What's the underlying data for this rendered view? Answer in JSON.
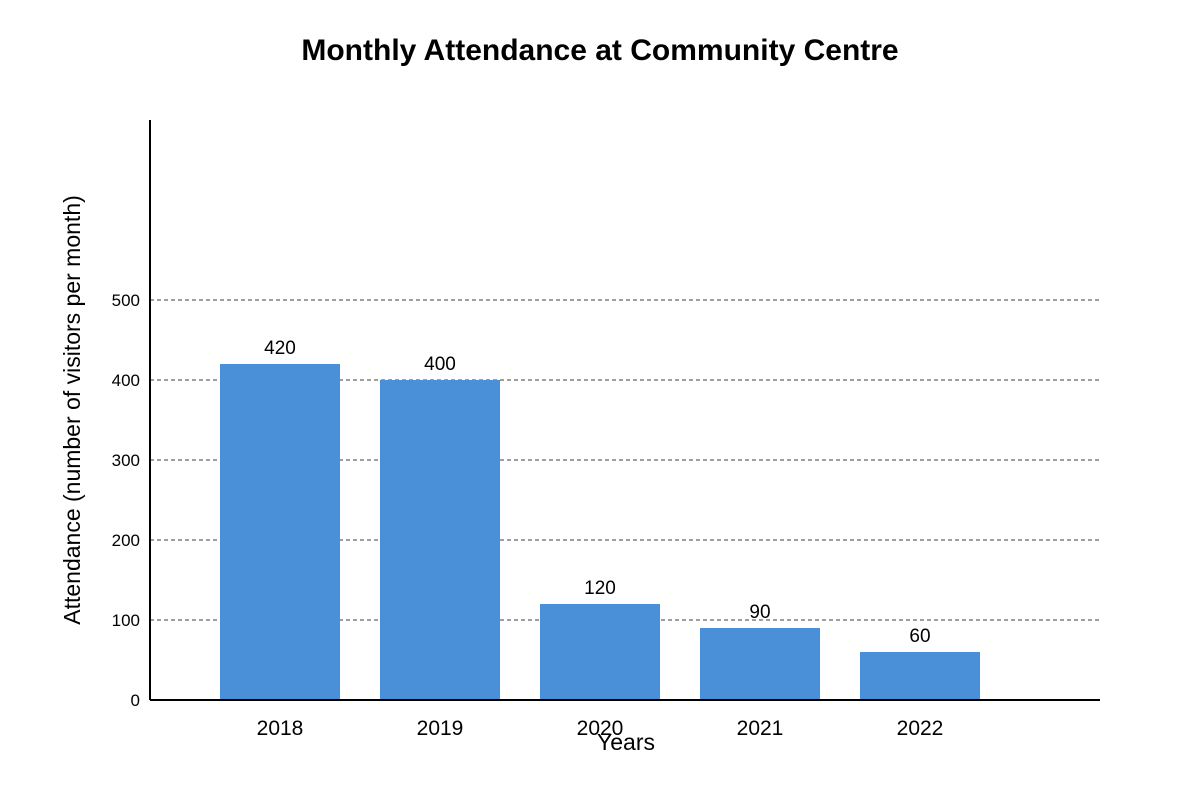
{
  "chart_data": {
    "type": "bar",
    "title": "Monthly Attendance at Community Centre",
    "xlabel": "Years",
    "ylabel": "Attendance (number of visitors per month)",
    "categories": [
      "2018",
      "2019",
      "2020",
      "2021",
      "2022"
    ],
    "values": [
      420,
      400,
      120,
      90,
      60
    ],
    "data_labels": [
      "420",
      "400",
      "120",
      "90",
      "60"
    ],
    "y_ticks": [
      0,
      100,
      200,
      300,
      400,
      500
    ],
    "y_tick_labels": [
      "0",
      "100",
      "200",
      "300",
      "400",
      "500"
    ],
    "ylim": [
      0,
      725
    ],
    "grid": true,
    "bar_color": "#4a90d9"
  }
}
